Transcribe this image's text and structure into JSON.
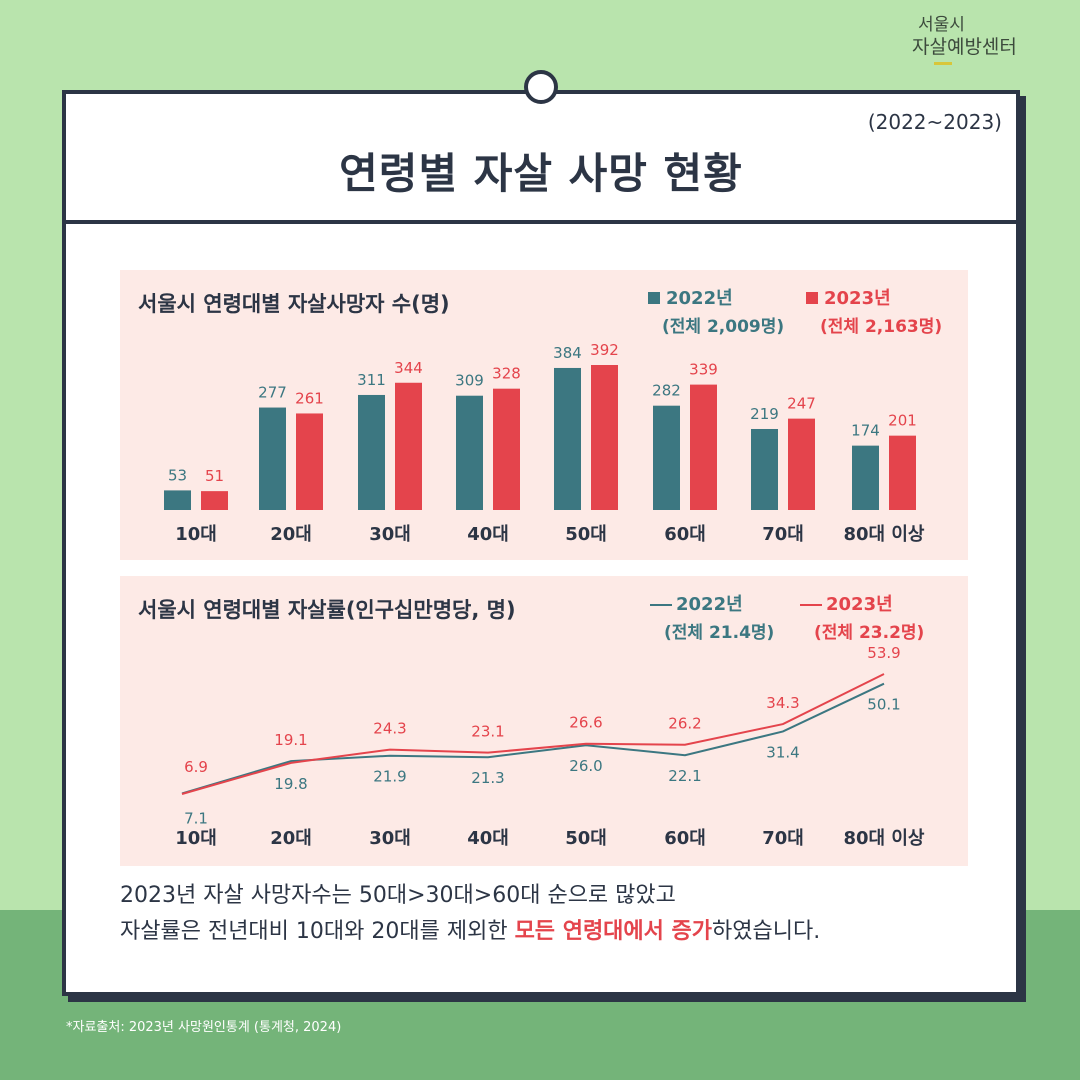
{
  "logo": {
    "line1": "서울시",
    "line2": "자살예방센터"
  },
  "header": {
    "period": "(2022~2023)",
    "title": "연령별 자살 사망 현황"
  },
  "colors": {
    "y2022": "#3c7781",
    "y2023": "#e4444c",
    "dark": "#2c3545",
    "panel": "#fdeae6"
  },
  "summary": {
    "line1": "2023년 자살 사망자수는 50대>30대>60대 순으로 많았고",
    "line2_pre": "자살률은 전년대비 10대와 20대를 제외한 ",
    "line2_highlight": "모든 연령대에서 증가",
    "line2_post": "하였습니다."
  },
  "source": "*자료출처: 2023년 사망원인통계 (통계청, 2024)",
  "chart_data": [
    {
      "type": "bar",
      "title": "서울시 연령대별 자살사망자 수(명)",
      "categories": [
        "10대",
        "20대",
        "30대",
        "40대",
        "50대",
        "60대",
        "70대",
        "80대 이상"
      ],
      "series": [
        {
          "name": "2022년",
          "total_label": "(전체 2,009명)",
          "values": [
            53,
            277,
            311,
            309,
            384,
            282,
            219,
            174
          ]
        },
        {
          "name": "2023년",
          "total_label": "(전체 2,163명)",
          "values": [
            51,
            261,
            344,
            328,
            392,
            339,
            247,
            201
          ]
        }
      ],
      "ylim": [
        0,
        392
      ]
    },
    {
      "type": "line",
      "title": "서울시 연령대별 자살률(인구십만명당, 명)",
      "categories": [
        "10대",
        "20대",
        "30대",
        "40대",
        "50대",
        "60대",
        "70대",
        "80대 이상"
      ],
      "series": [
        {
          "name": "2022년",
          "total_label": "(전체 21.4명)",
          "values": [
            7.1,
            19.8,
            21.9,
            21.3,
            26.0,
            22.1,
            31.4,
            50.1
          ],
          "labels": [
            "7.1",
            "19.8",
            "21.9",
            "21.3",
            "26.0",
            "22.1",
            "31.4",
            "50.1"
          ]
        },
        {
          "name": "2023년",
          "total_label": "(전체 23.2명)",
          "values": [
            6.9,
            19.1,
            24.3,
            23.1,
            26.6,
            26.2,
            34.3,
            53.9
          ],
          "labels": [
            "6.9",
            "19.1",
            "24.3",
            "23.1",
            "26.6",
            "26.2",
            "34.3",
            "53.9"
          ]
        }
      ],
      "ylim": [
        6.9,
        53.9
      ]
    }
  ]
}
